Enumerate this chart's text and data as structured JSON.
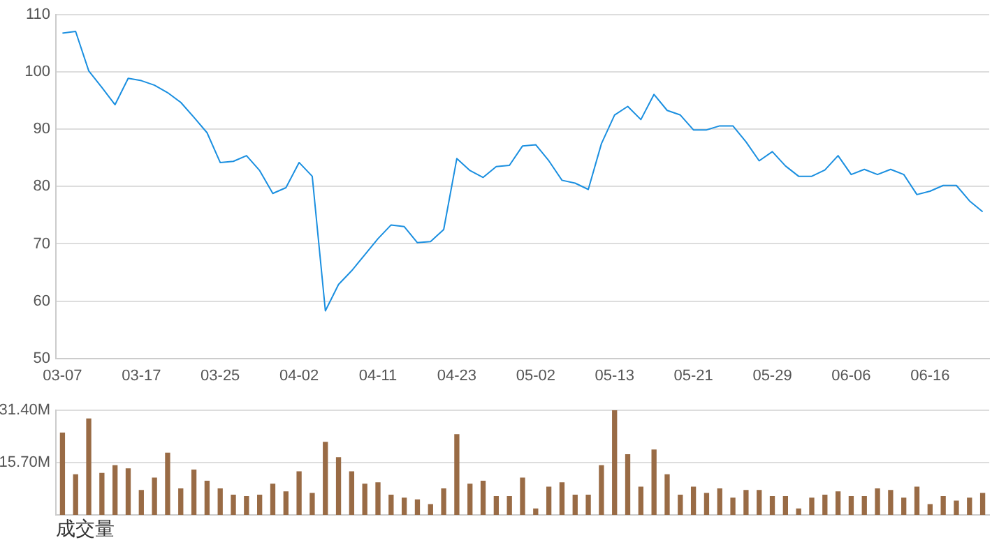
{
  "chart_data": [
    {
      "type": "line",
      "categories": [
        "03-07",
        null,
        null,
        null,
        null,
        null,
        "03-17",
        null,
        null,
        null,
        null,
        null,
        "03-25",
        null,
        null,
        null,
        null,
        null,
        "04-02",
        null,
        null,
        null,
        null,
        null,
        "04-11",
        null,
        null,
        null,
        null,
        null,
        "04-23",
        null,
        null,
        null,
        null,
        null,
        "05-02",
        null,
        null,
        null,
        null,
        null,
        "05-13",
        null,
        null,
        null,
        null,
        null,
        "05-21",
        null,
        null,
        null,
        null,
        null,
        "05-29",
        null,
        null,
        null,
        null,
        null,
        "06-06",
        null,
        null,
        null,
        null,
        null,
        "06-16",
        null,
        null,
        null,
        null
      ],
      "series": [
        {
          "color": "#1a8fe0",
          "values": [
            106.8,
            107.1,
            100.2,
            97.3,
            94.3,
            98.9,
            98.5,
            97.7,
            96.4,
            94.7,
            92.1,
            89.4,
            84.2,
            84.4,
            85.4,
            82.8,
            78.8,
            79.8,
            84.2,
            81.8,
            58.3,
            62.9,
            65.3,
            68.1,
            70.9,
            73.3,
            73.0,
            70.2,
            70.4,
            72.5,
            84.9,
            82.8,
            81.6,
            83.5,
            83.7,
            87.1,
            87.3,
            84.5,
            81.1,
            80.6,
            79.5,
            87.5,
            92.5,
            94.0,
            91.7,
            96.1,
            93.3,
            92.5,
            89.9,
            89.9,
            90.6,
            90.6,
            87.8,
            84.5,
            86.1,
            83.6,
            81.8,
            81.8,
            82.9,
            85.4,
            82.1,
            83.0,
            82.1,
            83.0,
            82.1,
            78.6,
            79.2,
            80.2,
            80.2,
            77.5,
            75.6
          ]
        }
      ],
      "ylim": [
        50,
        110
      ],
      "yticks": [
        50,
        60,
        70,
        80,
        90,
        100,
        110
      ],
      "grid": "y",
      "marker": "none",
      "line_style": "solid"
    },
    {
      "type": "bar",
      "xlabel": "成交量",
      "categories": [
        null,
        null,
        null,
        null,
        null,
        null,
        null,
        null,
        null,
        null,
        null,
        null,
        null,
        null,
        null,
        null,
        null,
        null,
        null,
        null,
        null,
        null,
        null,
        null,
        null,
        null,
        null,
        null,
        null,
        null,
        null,
        null,
        null,
        null,
        null,
        null,
        null,
        null,
        null,
        null,
        null,
        null,
        null,
        null,
        null,
        null,
        null,
        null,
        null,
        null,
        null,
        null,
        null,
        null,
        null,
        null,
        null,
        null,
        null,
        null,
        null,
        null,
        null,
        null,
        null,
        null,
        null,
        null,
        null,
        null,
        null
      ],
      "series": [
        {
          "color": "#996b45",
          "values": [
            24.6,
            12.1,
            28.8,
            12.5,
            14.8,
            13.9,
            7.4,
            11.1,
            18.6,
            7.9,
            13.5,
            10.2,
            7.9,
            6.0,
            5.6,
            6.0,
            9.3,
            7.0,
            13.0,
            6.5,
            21.8,
            17.2,
            13.0,
            9.3,
            9.7,
            6.0,
            5.1,
            4.6,
            3.2,
            7.9,
            24.1,
            9.3,
            10.2,
            5.6,
            5.6,
            11.1,
            1.9,
            8.4,
            9.7,
            6.0,
            6.0,
            14.8,
            31.4,
            18.1,
            8.4,
            19.5,
            12.1,
            6.0,
            8.4,
            6.5,
            7.9,
            5.1,
            7.4,
            7.4,
            5.6,
            5.6,
            1.9,
            5.1,
            6.0,
            7.0,
            5.6,
            5.6,
            7.9,
            7.4,
            5.1,
            8.4,
            3.2,
            5.6,
            4.2,
            5.1,
            6.5
          ]
        }
      ],
      "ylim": [
        0,
        31.4
      ],
      "yticks": [
        {
          "value": 0,
          "label": null
        },
        {
          "value": 15.7,
          "label": "15.70M"
        },
        {
          "value": 31.4,
          "label": "31.40M"
        }
      ],
      "grid": "y",
      "tick_labels": "y"
    }
  ]
}
